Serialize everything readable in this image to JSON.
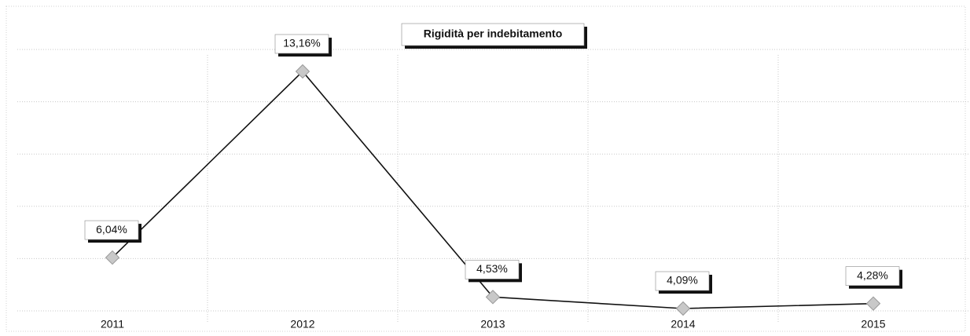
{
  "chart_data": {
    "type": "line",
    "title": "Rigidità per indebitamento",
    "categories": [
      "2011",
      "2012",
      "2013",
      "2014",
      "2015"
    ],
    "values": [
      6.04,
      13.16,
      4.53,
      4.09,
      4.28
    ],
    "value_labels": [
      "6,04%",
      "13,16%",
      "4,53%",
      "4,09%",
      "4,28%"
    ],
    "color": "#111111",
    "marker_color": "#c8c8c8",
    "ylim": [
      4,
      14
    ],
    "yticks": [
      4,
      6,
      8,
      10,
      12,
      14
    ],
    "grid": true
  }
}
